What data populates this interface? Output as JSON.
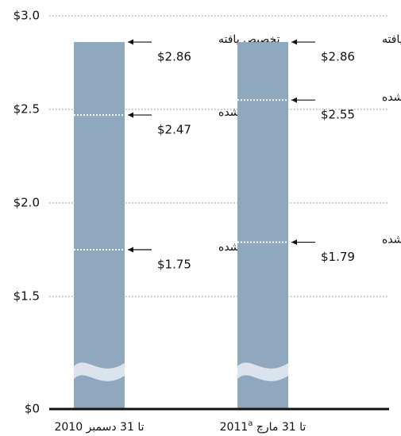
{
  "chart_data": {
    "type": "bar",
    "categories": [
      "تا 31 دسمبر 2010",
      "تا 31 مارچ 2011"
    ],
    "category_notes": [
      null,
      "a"
    ],
    "series": [
      {
        "name": "تخصیص یافته",
        "color": "#8fa8bf",
        "values": [
          2.86,
          2.86
        ],
        "value_labels": [
          "$2.86",
          "$2.86"
        ]
      },
      {
        "name": "تعهد شده",
        "color": "#ffffff",
        "values": [
          2.47,
          2.55
        ],
        "value_labels": [
          "$2.47",
          "$2.55"
        ]
      },
      {
        "name": "نقد شده",
        "color": "#ffffff",
        "values": [
          1.75,
          1.79
        ],
        "value_labels": [
          "$1.75",
          "$1.79"
        ]
      }
    ],
    "ylim": [
      0,
      3
    ],
    "yticks": [
      {
        "value": 0,
        "label": "$0"
      },
      {
        "value": 1.5,
        "label": "$1.5"
      },
      {
        "value": 2,
        "label": "$2.0"
      },
      {
        "value": 2.5,
        "label": "$2.5"
      },
      {
        "value": 3,
        "label": "$3.0"
      }
    ],
    "axis_break": true,
    "grid": true
  }
}
